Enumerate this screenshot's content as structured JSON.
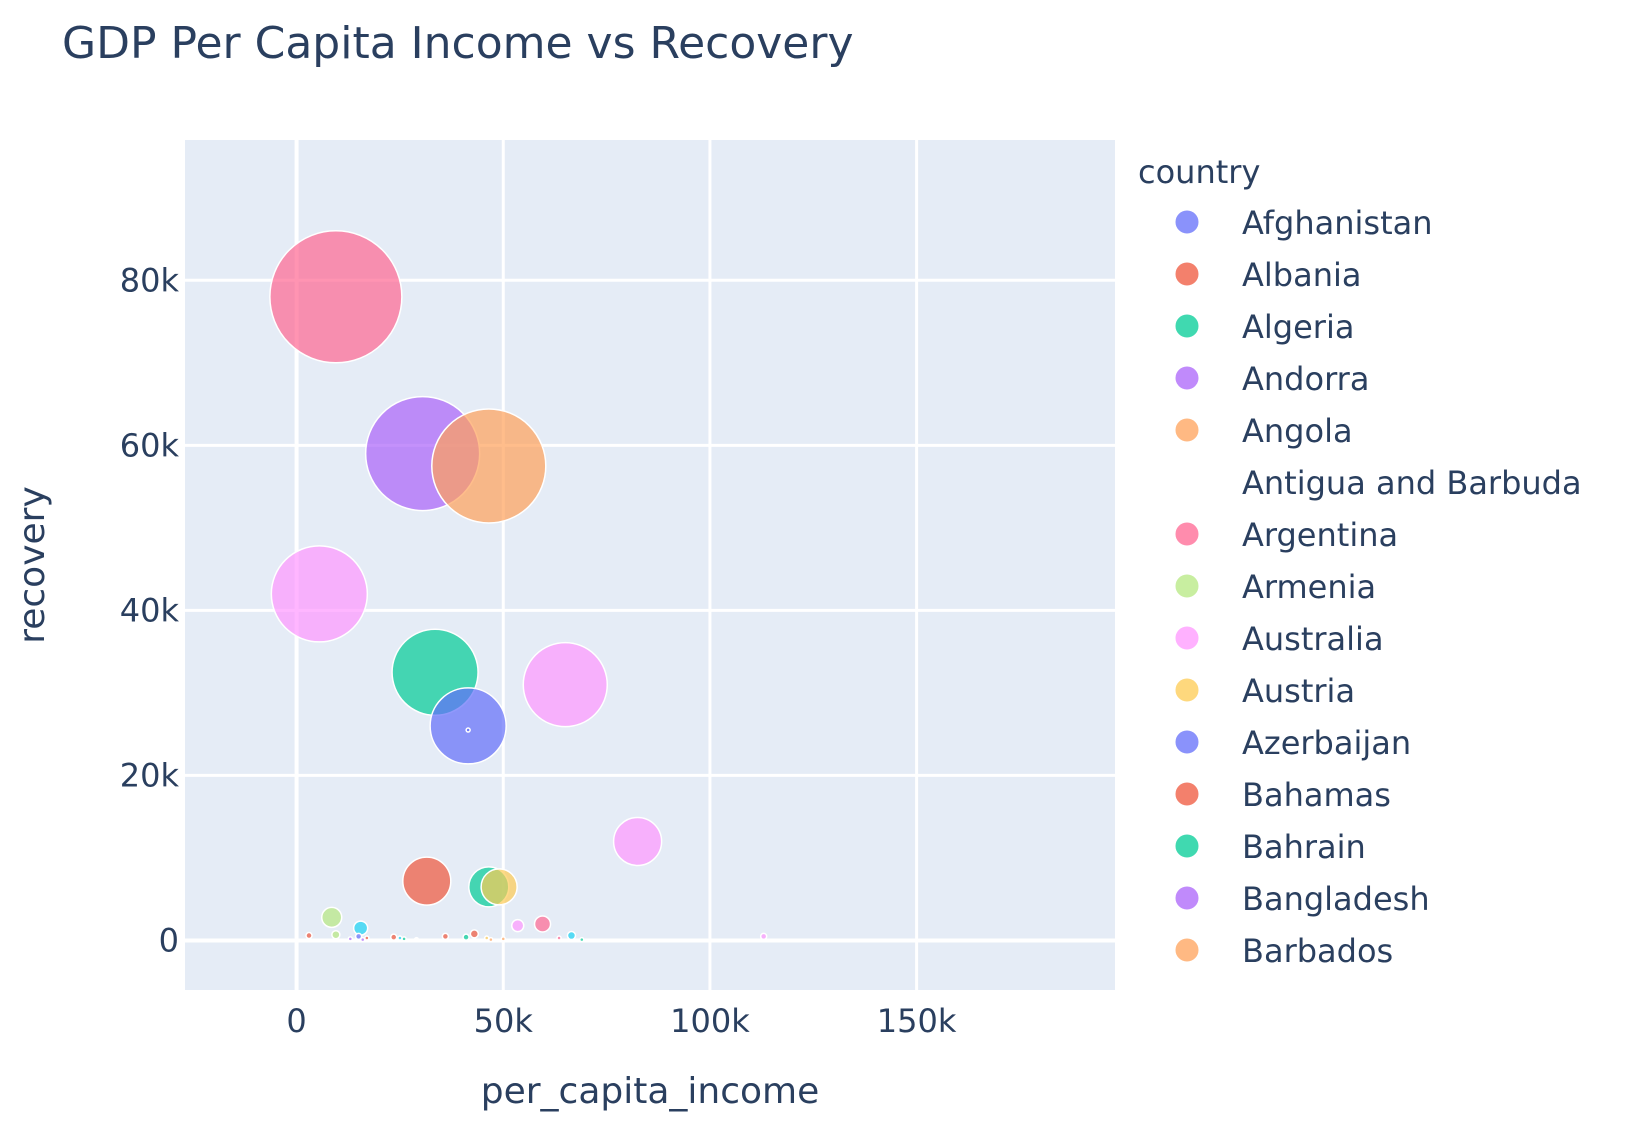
{
  "chart_data": {
    "type": "scatter",
    "title": "GDP Per Capita Income vs Recovery",
    "xlabel": "per_capita_income",
    "ylabel": "recovery",
    "xlim": [
      -27000,
      198000
    ],
    "ylim": [
      -6000,
      97000
    ],
    "xticks": [
      0,
      50000,
      100000,
      150000
    ],
    "xtick_labels": [
      "0",
      "50k",
      "100k",
      "150k"
    ],
    "yticks": [
      0,
      20000,
      40000,
      60000,
      80000
    ],
    "ytick_labels": [
      "0",
      "20k",
      "40k",
      "60k",
      "80k"
    ],
    "grid": true,
    "legend_title": "country",
    "legend_position": "right",
    "series": [
      {
        "name": "Afghanistan",
        "color": "#636efa",
        "points": [
          [
            41500,
            26000,
            38
          ],
          [
            15000,
            500,
            3
          ]
        ]
      },
      {
        "name": "Albania",
        "color": "#ef553b",
        "points": [
          [
            31500,
            7200,
            24
          ],
          [
            3000,
            600,
            3
          ],
          [
            23500,
            400,
            3
          ],
          [
            43000,
            800,
            4
          ]
        ]
      },
      {
        "name": "Algeria",
        "color": "#00cc96",
        "points": [
          [
            33500,
            32500,
            43
          ],
          [
            46500,
            6500,
            20
          ],
          [
            41000,
            400,
            3
          ]
        ]
      },
      {
        "name": "Andorra",
        "color": "#ab63fa",
        "points": [
          [
            30500,
            59000,
            57
          ],
          [
            13000,
            200,
            2
          ]
        ]
      },
      {
        "name": "Angola",
        "color": "#ffa15a",
        "points": [
          [
            46500,
            57500,
            57
          ],
          [
            47000,
            100,
            2
          ]
        ]
      },
      {
        "name": "Antigua and Barbuda",
        "color": "#ffffff",
        "points": [
          [
            29000,
            100,
            2
          ]
        ]
      },
      {
        "name": "Argentina",
        "color": "#ff6692",
        "points": [
          [
            9500,
            78000,
            66
          ],
          [
            59500,
            2000,
            8
          ],
          [
            63500,
            300,
            2
          ]
        ]
      },
      {
        "name": "Armenia",
        "color": "#b6e880",
        "points": [
          [
            8500,
            2800,
            10
          ],
          [
            9500,
            700,
            4
          ]
        ]
      },
      {
        "name": "Australia",
        "color": "#ff97ff",
        "points": [
          [
            5500,
            42000,
            48
          ],
          [
            65000,
            31000,
            42
          ],
          [
            82500,
            12000,
            24
          ],
          [
            53500,
            1800,
            6
          ],
          [
            113000,
            500,
            3
          ]
        ]
      },
      {
        "name": "Austria",
        "color": "#fecb52",
        "points": [
          [
            49000,
            6500,
            18
          ],
          [
            46000,
            300,
            2
          ]
        ]
      },
      {
        "name": "Azerbaijan",
        "color": "#636efa",
        "points": [
          [
            41500,
            25500,
            2
          ]
        ]
      },
      {
        "name": "Bahamas",
        "color": "#ef553b",
        "points": [
          [
            17000,
            300,
            2
          ],
          [
            36000,
            500,
            3
          ]
        ]
      },
      {
        "name": "Bahrain",
        "color": "#00cc96",
        "points": [
          [
            26000,
            200,
            2
          ],
          [
            69000,
            100,
            2
          ]
        ]
      },
      {
        "name": "Bangladesh",
        "color": "#ab63fa",
        "points": [
          [
            16000,
            100,
            2
          ]
        ]
      },
      {
        "name": "Barbados",
        "color": "#ffa15a",
        "points": [
          [
            50000,
            200,
            2
          ]
        ]
      },
      {
        "name": "",
        "color": "#19d3f3",
        "points": [
          [
            15500,
            1500,
            7
          ],
          [
            66500,
            600,
            4
          ],
          [
            25000,
            300,
            2
          ]
        ]
      }
    ]
  }
}
